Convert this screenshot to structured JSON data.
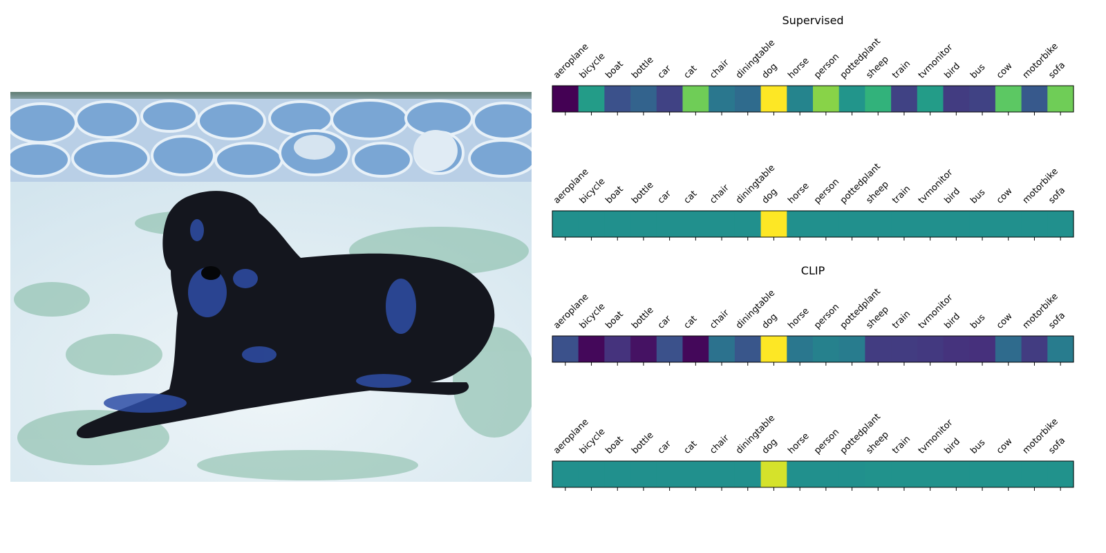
{
  "chart_data": [
    {
      "type": "heatmap",
      "title": "Supervised",
      "colormap": "viridis",
      "categories": [
        "aeroplane",
        "bicycle",
        "boat",
        "bottle",
        "car",
        "cat",
        "chair",
        "diningtable",
        "dog",
        "horse",
        "person",
        "pottedplant",
        "sheep",
        "train",
        "tvmonitor",
        "bird",
        "bus",
        "cow",
        "motorbike",
        "sofa"
      ],
      "values": [
        0.0,
        0.55,
        0.25,
        0.32,
        0.2,
        0.78,
        0.4,
        0.35,
        1.0,
        0.45,
        0.82,
        0.52,
        0.65,
        0.2,
        0.55,
        0.18,
        0.2,
        0.75,
        0.28,
        0.78
      ]
    },
    {
      "type": "heatmap",
      "title": "",
      "colormap": "viridis",
      "categories": [
        "aeroplane",
        "bicycle",
        "boat",
        "bottle",
        "car",
        "cat",
        "chair",
        "diningtable",
        "dog",
        "horse",
        "person",
        "pottedplant",
        "sheep",
        "train",
        "tvmonitor",
        "bird",
        "bus",
        "cow",
        "motorbike",
        "sofa"
      ],
      "values": [
        0.5,
        0.5,
        0.5,
        0.5,
        0.5,
        0.5,
        0.5,
        0.5,
        1.0,
        0.5,
        0.5,
        0.5,
        0.5,
        0.5,
        0.5,
        0.5,
        0.5,
        0.5,
        0.5,
        0.5
      ]
    },
    {
      "type": "heatmap",
      "title": "CLIP",
      "colormap": "viridis",
      "categories": [
        "aeroplane",
        "bicycle",
        "boat",
        "bottle",
        "car",
        "cat",
        "chair",
        "diningtable",
        "dog",
        "horse",
        "person",
        "pottedplant",
        "sheep",
        "train",
        "tvmonitor",
        "bird",
        "bus",
        "cow",
        "motorbike",
        "sofa"
      ],
      "values": [
        0.25,
        0.02,
        0.15,
        0.05,
        0.25,
        0.02,
        0.38,
        0.27,
        1.0,
        0.4,
        0.44,
        0.42,
        0.18,
        0.18,
        0.17,
        0.15,
        0.14,
        0.35,
        0.18,
        0.42
      ]
    },
    {
      "type": "heatmap",
      "title": "",
      "colormap": "viridis",
      "categories": [
        "aeroplane",
        "bicycle",
        "boat",
        "bottle",
        "car",
        "cat",
        "chair",
        "diningtable",
        "dog",
        "horse",
        "person",
        "pottedplant",
        "sheep",
        "train",
        "tvmonitor",
        "bird",
        "bus",
        "cow",
        "motorbike",
        "sofa"
      ],
      "values": [
        0.5,
        0.5,
        0.5,
        0.5,
        0.5,
        0.5,
        0.5,
        0.5,
        0.94,
        0.5,
        0.5,
        0.5,
        0.51,
        0.51,
        0.51,
        0.51,
        0.51,
        0.51,
        0.51,
        0.51
      ]
    }
  ],
  "photo": {
    "sky": "#6f8c7c",
    "wall_base": "#b9cfe6",
    "grass": "#dfecf2",
    "grass_green": "#6fae94",
    "dog_body": "#14161e",
    "dog_highlight": "#2e4da6",
    "icon": "dog-on-grass-photo"
  }
}
